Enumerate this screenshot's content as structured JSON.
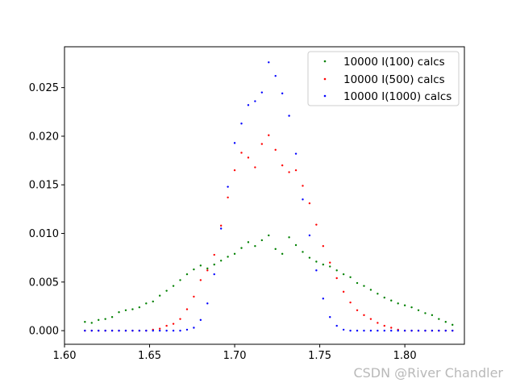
{
  "chart_data": {
    "type": "scatter",
    "title": "",
    "xlabel": "",
    "ylabel": "",
    "xlim": [
      1.6,
      1.835
    ],
    "ylim": [
      -0.0014,
      0.0292
    ],
    "x_ticks": [
      "1.60",
      "1.65",
      "1.70",
      "1.75",
      "1.80"
    ],
    "y_ticks": [
      "0.000",
      "0.005",
      "0.010",
      "0.015",
      "0.020",
      "0.025"
    ],
    "grid": false,
    "legend_position": "top-right",
    "series": [
      {
        "name": "10000 I(100) calcs",
        "color": "#008000",
        "x": [
          1.612,
          1.616,
          1.62,
          1.624,
          1.628,
          1.632,
          1.636,
          1.64,
          1.644,
          1.648,
          1.652,
          1.656,
          1.66,
          1.664,
          1.668,
          1.672,
          1.676,
          1.68,
          1.684,
          1.688,
          1.692,
          1.696,
          1.7,
          1.704,
          1.708,
          1.712,
          1.716,
          1.72,
          1.724,
          1.728,
          1.732,
          1.736,
          1.74,
          1.744,
          1.748,
          1.752,
          1.756,
          1.76,
          1.764,
          1.768,
          1.772,
          1.776,
          1.78,
          1.784,
          1.788,
          1.792,
          1.796,
          1.8,
          1.804,
          1.808,
          1.812,
          1.816,
          1.82,
          1.824,
          1.828
        ],
        "y": [
          0.0009,
          0.0008,
          0.0011,
          0.0012,
          0.0014,
          0.0019,
          0.0021,
          0.0022,
          0.0024,
          0.0028,
          0.003,
          0.0036,
          0.0041,
          0.0046,
          0.0052,
          0.0058,
          0.0063,
          0.0067,
          0.0064,
          0.0068,
          0.0072,
          0.0076,
          0.0079,
          0.0085,
          0.0091,
          0.0087,
          0.0093,
          0.0098,
          0.0084,
          0.0079,
          0.0096,
          0.0088,
          0.0081,
          0.0075,
          0.0071,
          0.0068,
          0.0066,
          0.0062,
          0.0058,
          0.0055,
          0.0049,
          0.0046,
          0.0042,
          0.0038,
          0.0034,
          0.0031,
          0.0028,
          0.0026,
          0.0024,
          0.0021,
          0.0018,
          0.0016,
          0.0012,
          0.0009,
          0.0006
        ]
      },
      {
        "name": "10000 I(500) calcs",
        "color": "#ff0000",
        "x": [
          1.612,
          1.616,
          1.62,
          1.624,
          1.628,
          1.632,
          1.636,
          1.64,
          1.644,
          1.648,
          1.652,
          1.656,
          1.66,
          1.664,
          1.668,
          1.672,
          1.676,
          1.68,
          1.684,
          1.688,
          1.692,
          1.696,
          1.7,
          1.704,
          1.708,
          1.712,
          1.716,
          1.72,
          1.724,
          1.728,
          1.732,
          1.736,
          1.74,
          1.744,
          1.748,
          1.752,
          1.756,
          1.76,
          1.764,
          1.768,
          1.772,
          1.776,
          1.78,
          1.784,
          1.788,
          1.792,
          1.796,
          1.8,
          1.804,
          1.808,
          1.812,
          1.816,
          1.82,
          1.824,
          1.828
        ],
        "y": [
          0.0,
          0.0,
          0.0,
          0.0,
          0.0,
          0.0,
          0.0,
          0.0,
          0.0,
          0.0,
          0.0001,
          0.0002,
          0.0005,
          0.0007,
          0.0012,
          0.0022,
          0.0035,
          0.0052,
          0.0062,
          0.0078,
          0.0108,
          0.0137,
          0.0165,
          0.0183,
          0.0178,
          0.0168,
          0.0192,
          0.0201,
          0.0186,
          0.017,
          0.0163,
          0.0165,
          0.0149,
          0.0131,
          0.0109,
          0.0087,
          0.007,
          0.0054,
          0.004,
          0.0029,
          0.0021,
          0.0016,
          0.0012,
          0.0008,
          0.0005,
          0.0003,
          0.0001,
          0.0,
          0.0,
          0.0,
          0.0,
          0.0,
          0.0,
          0.0,
          0.0
        ]
      },
      {
        "name": "10000 I(1000) calcs",
        "color": "#0000ff",
        "x": [
          1.612,
          1.616,
          1.62,
          1.624,
          1.628,
          1.632,
          1.636,
          1.64,
          1.644,
          1.648,
          1.652,
          1.656,
          1.66,
          1.664,
          1.668,
          1.672,
          1.676,
          1.68,
          1.684,
          1.688,
          1.692,
          1.696,
          1.7,
          1.704,
          1.708,
          1.712,
          1.716,
          1.72,
          1.724,
          1.728,
          1.732,
          1.736,
          1.74,
          1.744,
          1.748,
          1.752,
          1.756,
          1.76,
          1.764,
          1.768,
          1.772,
          1.776,
          1.78,
          1.784,
          1.788,
          1.792,
          1.796,
          1.8,
          1.804,
          1.808,
          1.812,
          1.816,
          1.82,
          1.824,
          1.828
        ],
        "y": [
          0.0,
          0.0,
          0.0,
          0.0,
          0.0,
          0.0,
          0.0,
          0.0,
          0.0,
          0.0,
          0.0,
          0.0,
          0.0,
          0.0,
          0.0,
          0.0001,
          0.0003,
          0.0011,
          0.0028,
          0.0058,
          0.0105,
          0.0148,
          0.0193,
          0.0213,
          0.0232,
          0.0236,
          0.0245,
          0.0276,
          0.0262,
          0.0244,
          0.0221,
          0.0182,
          0.0135,
          0.0098,
          0.0062,
          0.0033,
          0.0014,
          0.0005,
          0.0001,
          0.0,
          0.0,
          0.0,
          0.0,
          0.0,
          0.0,
          0.0,
          0.0,
          0.0,
          0.0,
          0.0,
          0.0,
          0.0,
          0.0,
          0.0,
          0.0
        ]
      }
    ]
  },
  "watermark": "CSDN @River Chandler"
}
